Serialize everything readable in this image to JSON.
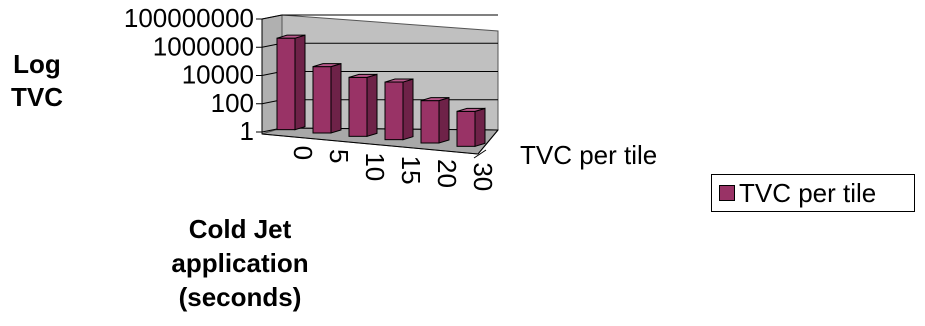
{
  "chart_data": {
    "type": "bar",
    "view": "3d-column",
    "y_scale": "log10",
    "categories": [
      "0",
      "5",
      "10",
      "15",
      "20",
      "30"
    ],
    "series": [
      {
        "name": "TVC per tile",
        "values": [
          3000000,
          50000,
          15000,
          12000,
          1000,
          300
        ]
      }
    ],
    "ylim": [
      1,
      100000000
    ],
    "yticks": [
      "1",
      "100",
      "10000",
      "1000000",
      "100000000"
    ],
    "ylabel_lines": [
      "Log",
      "TVC"
    ],
    "xlabel_lines": [
      "Cold Jet",
      "application",
      "(seconds)"
    ],
    "depth_axis_label": "TVC per tile",
    "legend": {
      "position": "right",
      "entries": [
        "TVC per tile"
      ]
    },
    "grid": true,
    "colors": {
      "bar": "#993366",
      "bar_top": "#b8578a",
      "bar_side": "#6e2248",
      "wall": "#c0c0c0",
      "floor": "#a8a8a8"
    }
  }
}
